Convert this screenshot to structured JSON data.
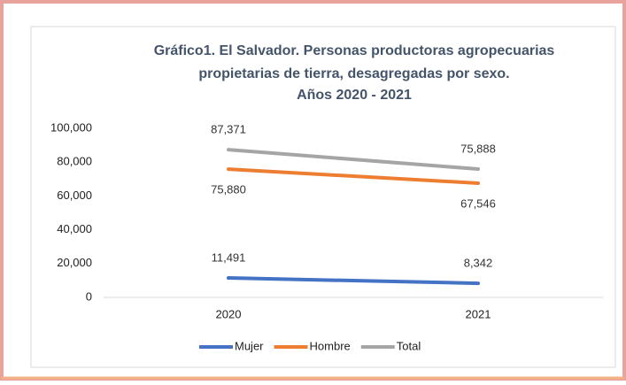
{
  "chart_data": {
    "type": "line",
    "title": [
      "Gráfico1. El Salvador. Personas productoras agropecuarias",
      "propietarias de tierra, desagregadas por sexo.",
      "Años  2020 - 2021"
    ],
    "categories": [
      "2020",
      "2021"
    ],
    "series": [
      {
        "name": "Mujer",
        "color": "#4472c4",
        "values": [
          11491,
          8342
        ],
        "value_labels": [
          "11,491",
          "8,342"
        ]
      },
      {
        "name": "Hombre",
        "color": "#ed7d31",
        "values": [
          75880,
          67546
        ],
        "value_labels": [
          "75,880",
          "67,546"
        ]
      },
      {
        "name": "Total",
        "color": "#a5a5a5",
        "values": [
          87371,
          75888
        ],
        "value_labels": [
          "87,371",
          "75,888"
        ]
      }
    ],
    "ylim": [
      0,
      100000
    ],
    "yticks": [
      0,
      {
        "value": 20000,
        "label": "20,000"
      },
      {
        "value": 40000,
        "label": "40,000"
      },
      {
        "value": 60000,
        "label": "60,000"
      },
      {
        "value": 80000,
        "label": "80,000"
      },
      {
        "value": 100000,
        "label": "100,000"
      }
    ],
    "grid": false,
    "legend": "bottom"
  }
}
